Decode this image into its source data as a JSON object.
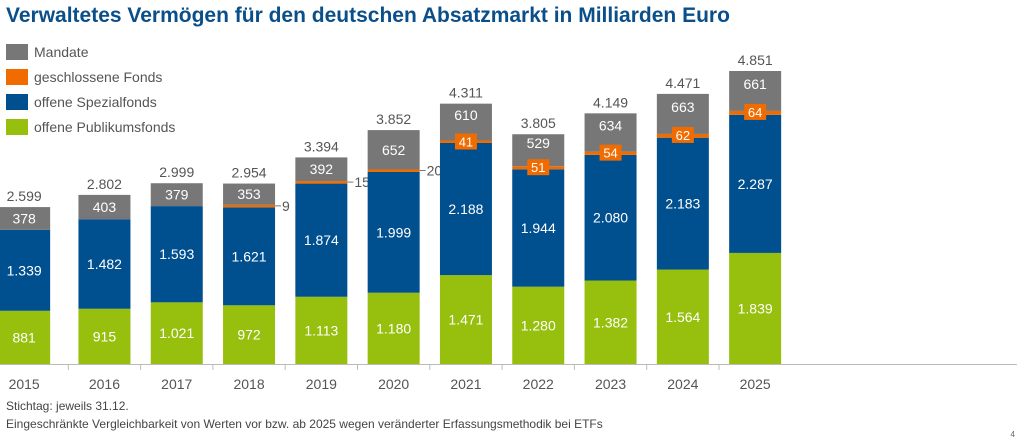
{
  "chart_data": {
    "type": "bar",
    "stacked": true,
    "title": "Verwaltetes Vermögen für den deutschen Absatzmarkt in Milliarden Euro",
    "xlabel": "",
    "ylabel": "",
    "categories": [
      "2015",
      "2016",
      "2017",
      "2018",
      "2019",
      "2020",
      "2021",
      "2022",
      "2023",
      "2024",
      "2025"
    ],
    "series": [
      {
        "name": "offene Publikumsfonds",
        "color": "#97bf0d",
        "values": [
          881,
          915,
          1021,
          972,
          1113,
          1180,
          1471,
          1280,
          1382,
          1564,
          1839
        ],
        "labels": [
          "881",
          "915",
          "1.021",
          "972",
          "1.113",
          "1.180",
          "1.471",
          "1.280",
          "1.382",
          "1.564",
          "1.839"
        ]
      },
      {
        "name": "offene Spezialfonds",
        "color": "#004f8f",
        "values": [
          1339,
          1482,
          1593,
          1621,
          1874,
          1999,
          2188,
          1944,
          2080,
          2183,
          2287
        ],
        "labels": [
          "1.339",
          "1.482",
          "1.593",
          "1.621",
          "1.874",
          "1.999",
          "2.188",
          "1.944",
          "2.080",
          "2.183",
          "2.287"
        ]
      },
      {
        "name": "geschlossene Fonds",
        "color": "#f06c00",
        "values": [
          null,
          null,
          null,
          9,
          15,
          20,
          41,
          51,
          54,
          62,
          64
        ],
        "labels": [
          "",
          "",
          "",
          "9",
          "15",
          "20",
          "41",
          "51",
          "54",
          "62",
          "64"
        ]
      },
      {
        "name": "Mandate",
        "color": "#777777",
        "values": [
          378,
          403,
          379,
          353,
          392,
          652,
          610,
          529,
          634,
          663,
          661
        ],
        "labels": [
          "378",
          "403",
          "379",
          "353",
          "392",
          "652",
          "610",
          "529",
          "634",
          "663",
          "661"
        ]
      }
    ],
    "totals": [
      2599,
      2802,
      2999,
      2954,
      3394,
      3852,
      4311,
      3805,
      4149,
      4471,
      4851
    ],
    "total_labels": [
      "2.599",
      "2.802",
      "2.999",
      "2.954",
      "3.394",
      "3.852",
      "4.311",
      "3.805",
      "4.149",
      "4.471",
      "4.851"
    ],
    "ylim": [
      0,
      5000
    ],
    "grid": false,
    "legend": "top-left",
    "legend_order": [
      "Mandate",
      "geschlossene Fonds",
      "offene Spezialfonds",
      "offene Publikumsfonds"
    ]
  },
  "footnotes": {
    "line1": "Stichtag: jeweils 31.12.",
    "line2": "Eingeschränkte Vergleichbarkeit von Werten vor bzw. ab 2025 wegen veränderter Erfassungsmethodik bei ETFs"
  },
  "page_number": "4"
}
